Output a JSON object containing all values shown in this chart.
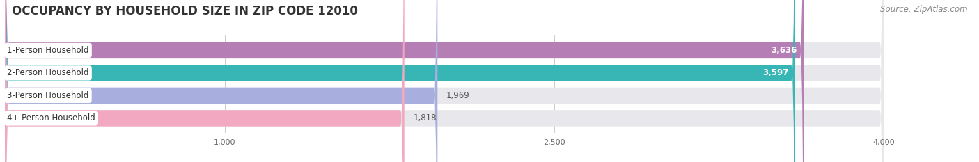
{
  "title": "OCCUPANCY BY HOUSEHOLD SIZE IN ZIP CODE 12010",
  "source": "Source: ZipAtlas.com",
  "categories": [
    "1-Person Household",
    "2-Person Household",
    "3-Person Household",
    "4+ Person Household"
  ],
  "values": [
    3636,
    3597,
    1969,
    1818
  ],
  "bar_colors": [
    "#b57eb5",
    "#38b5b5",
    "#a8aedd",
    "#f2a8c0"
  ],
  "bar_label_colors": [
    "white",
    "white",
    "#555555",
    "#555555"
  ],
  "xlim": [
    0,
    4300
  ],
  "data_max": 4000,
  "xticks": [
    1000,
    2500,
    4000
  ],
  "bg_color": "#ffffff",
  "bar_bg_color": "#e8e8ec",
  "row_bg_color": "#f0f0f5",
  "title_fontsize": 12,
  "source_fontsize": 8.5,
  "label_fontsize": 8.5,
  "value_fontsize": 8.5,
  "bar_height": 0.72,
  "figsize": [
    14.06,
    2.33
  ],
  "dpi": 100
}
